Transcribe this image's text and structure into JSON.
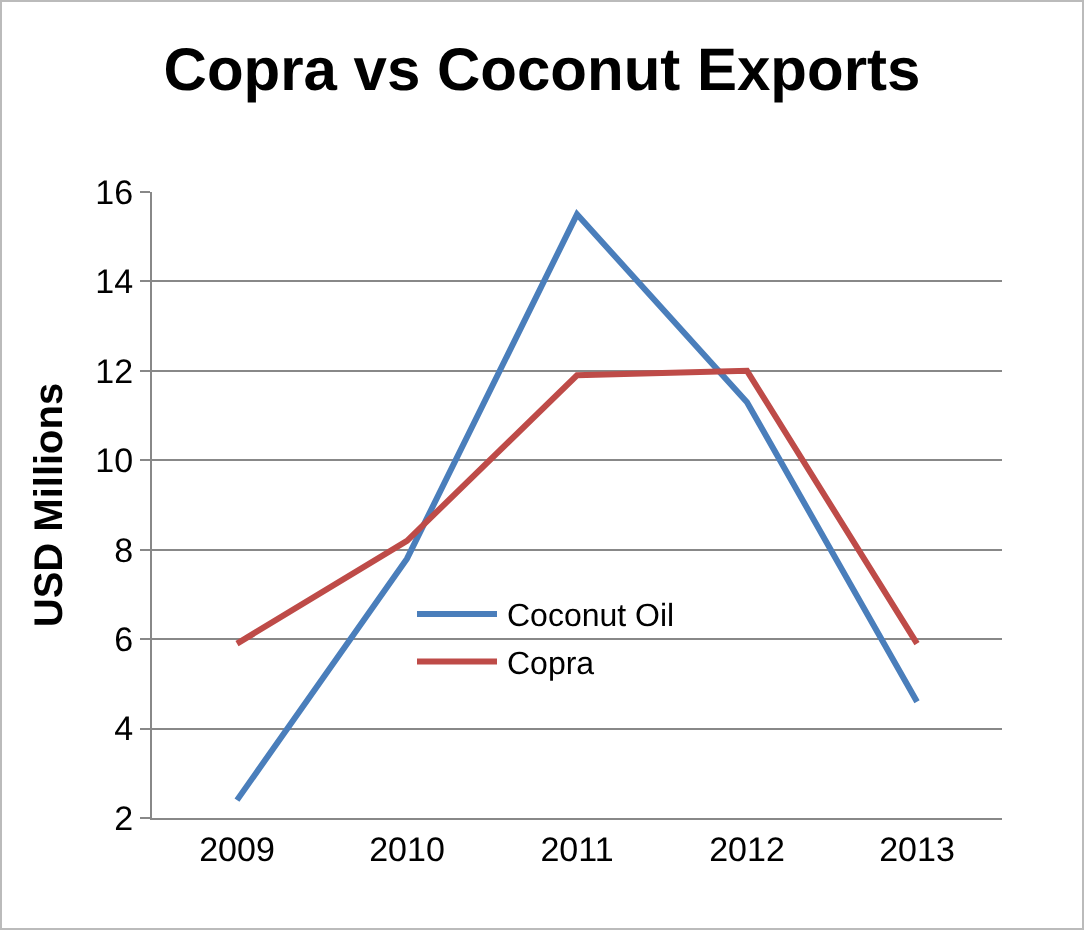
{
  "chart_data": {
    "type": "line",
    "title": "Copra vs Coconut Exports",
    "ylabel": "USD Millions",
    "categories": [
      "2009",
      "2010",
      "2011",
      "2012",
      "2013"
    ],
    "series": [
      {
        "name": "Coconut Oil",
        "color": "#4a7ebb",
        "values": [
          2.4,
          7.8,
          15.5,
          11.3,
          4.6
        ]
      },
      {
        "name": "Copra",
        "color": "#be4b48",
        "values": [
          5.9,
          8.2,
          11.9,
          12.0,
          5.9
        ]
      }
    ],
    "ylim": [
      2,
      16
    ],
    "yticks": [
      2,
      4,
      6,
      8,
      10,
      12,
      14,
      16
    ],
    "grid": "y",
    "legend": "bottom",
    "marker": "none",
    "line_style": "solid"
  }
}
